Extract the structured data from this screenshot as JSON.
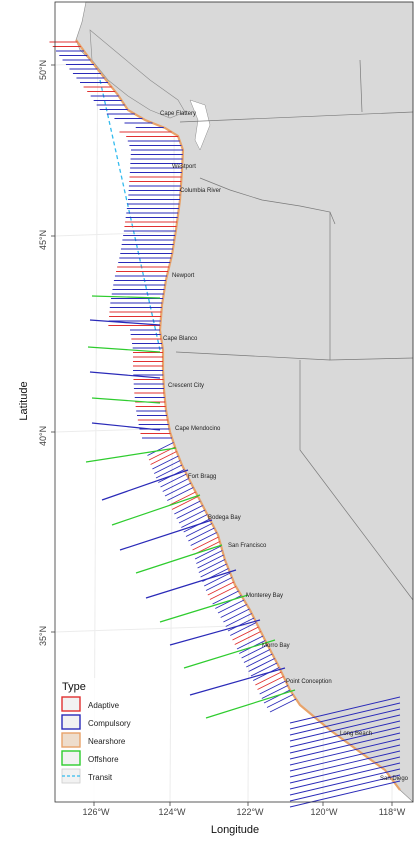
{
  "map": {
    "xlabel": "Longitude",
    "ylabel": "Latitude",
    "lat_ticks": [
      "50°N",
      "45°N",
      "40°N",
      "35°N"
    ],
    "lon_ticks": [
      "126°W",
      "124°W",
      "122°W",
      "120°W",
      "118°W"
    ],
    "place_labels": [
      "Cape Flattery",
      "Westport",
      "Columbia River",
      "Newport",
      "Cape Blanco",
      "Crescent City",
      "Cape Mendocino",
      "Fort Bragg",
      "Bodega Bay",
      "San Francisco",
      "Monterey Bay",
      "Morro Bay",
      "Point Conception",
      "Long Beach",
      "San Diego"
    ],
    "colors": {
      "ocean": "#ffffff",
      "land": "#d9d9d9",
      "adaptive": "#e03030",
      "compulsory": "#2a2ab8",
      "nearshore": "#e8a36a",
      "offshore": "#2ecc2e",
      "transit": "#33bbee"
    }
  },
  "legend": {
    "title": "Type",
    "items": [
      "Adaptive",
      "Compulsory",
      "Nearshore",
      "Offshore",
      "Transit"
    ]
  }
}
